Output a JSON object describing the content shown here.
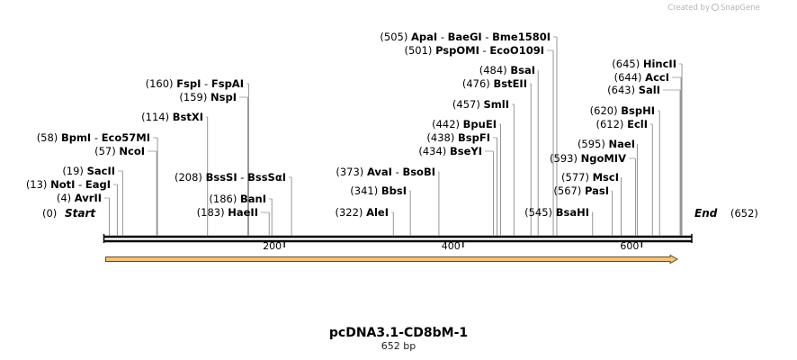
{
  "header": {
    "credit_text": "Created by",
    "brand": "SnapGene"
  },
  "sequence": {
    "name": "pcDNA3.1-CD8bM-1",
    "length_label": "652 bp",
    "length": 652,
    "start_label": "Start",
    "start_pos": "(0)",
    "end_label": "End",
    "end_pos": "(652)"
  },
  "ruler": {
    "ticks": [
      200,
      400,
      600
    ]
  },
  "feature": {
    "start": 0,
    "end": 640,
    "color": "#f2c27a",
    "outline": "#6b4a1a"
  },
  "enzyme_sites": [
    {
      "label_id": "avrii",
      "pos": 4,
      "enzymes": [
        "AvrII"
      ]
    },
    {
      "label_id": "noti",
      "pos": 13,
      "enzymes": [
        "NotI",
        "EagI"
      ]
    },
    {
      "label_id": "sacii",
      "pos": 19,
      "enzymes": [
        "SacII"
      ]
    },
    {
      "label_id": "ncoi",
      "pos": 57,
      "enzymes": [
        "NcoI"
      ]
    },
    {
      "label_id": "bpmi",
      "pos": 58,
      "enzymes": [
        "BpmI",
        "Eco57MI"
      ]
    },
    {
      "label_id": "bstxi",
      "pos": 114,
      "enzymes": [
        "BstXI"
      ]
    },
    {
      "label_id": "nspi",
      "pos": 159,
      "enzymes": [
        "NspI"
      ]
    },
    {
      "label_id": "fspi",
      "pos": 160,
      "enzymes": [
        "FspI",
        "FspAI"
      ]
    },
    {
      "label_id": "haeii",
      "pos": 183,
      "enzymes": [
        "HaeII"
      ]
    },
    {
      "label_id": "bani",
      "pos": 186,
      "enzymes": [
        "BanI"
      ]
    },
    {
      "label_id": "bsssi",
      "pos": 208,
      "enzymes": [
        "BssSI",
        "BssSαI"
      ]
    },
    {
      "label_id": "alei",
      "pos": 322,
      "enzymes": [
        "AleI"
      ]
    },
    {
      "label_id": "bbsi",
      "pos": 341,
      "enzymes": [
        "BbsI"
      ]
    },
    {
      "label_id": "avai",
      "pos": 373,
      "enzymes": [
        "AvaI",
        "BsoBI"
      ]
    },
    {
      "label_id": "bseyi",
      "pos": 434,
      "enzymes": [
        "BseYI"
      ]
    },
    {
      "label_id": "bspfi",
      "pos": 438,
      "enzymes": [
        "BspFI"
      ]
    },
    {
      "label_id": "bpuei",
      "pos": 442,
      "enzymes": [
        "BpuEI"
      ]
    },
    {
      "label_id": "smli",
      "pos": 457,
      "enzymes": [
        "SmlI"
      ]
    },
    {
      "label_id": "bstEII",
      "pos": 476,
      "enzymes": [
        "BstEII"
      ]
    },
    {
      "label_id": "bsai",
      "pos": 484,
      "enzymes": [
        "BsaI"
      ]
    },
    {
      "label_id": "pspomi",
      "pos": 501,
      "enzymes": [
        "PspOMI",
        "EcoO109I"
      ]
    },
    {
      "label_id": "apai",
      "pos": 505,
      "enzymes": [
        "ApaI",
        "BaeGI",
        "Bme1580I"
      ]
    },
    {
      "label_id": "bsahi",
      "pos": 545,
      "enzymes": [
        "BsaHI"
      ]
    },
    {
      "label_id": "pasi",
      "pos": 567,
      "enzymes": [
        "PasI"
      ]
    },
    {
      "label_id": "msci",
      "pos": 577,
      "enzymes": [
        "MscI"
      ]
    },
    {
      "label_id": "ngomiv",
      "pos": 593,
      "enzymes": [
        "NgoMIV"
      ]
    },
    {
      "label_id": "naei",
      "pos": 595,
      "enzymes": [
        "NaeI"
      ]
    },
    {
      "label_id": "ecli",
      "pos": 612,
      "enzymes": [
        "EclI"
      ]
    },
    {
      "label_id": "bsphi",
      "pos": 620,
      "enzymes": [
        "BspHI"
      ]
    },
    {
      "label_id": "sali",
      "pos": 643,
      "enzymes": [
        "SalI"
      ]
    },
    {
      "label_id": "acci",
      "pos": 644,
      "enzymes": [
        "AccI"
      ]
    },
    {
      "label_id": "hincii",
      "pos": 645,
      "enzymes": [
        "HincII"
      ]
    }
  ]
}
